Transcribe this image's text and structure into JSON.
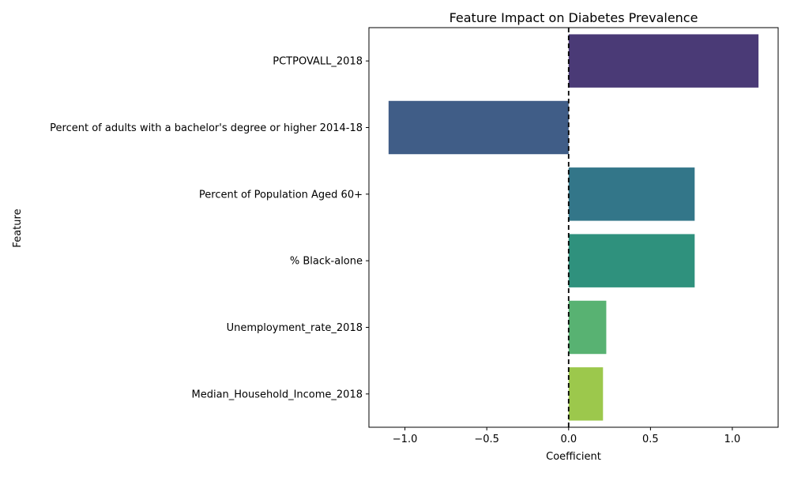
{
  "chart_data": {
    "type": "bar",
    "orientation": "horizontal",
    "title": "Feature Impact on Diabetes Prevalence",
    "xlabel": "Coefficient",
    "ylabel": "Feature",
    "xlim": [
      -1.22,
      1.28
    ],
    "xticks": [
      -1.0,
      -0.5,
      0.0,
      0.5,
      1.0
    ],
    "xtick_labels": [
      "−1.0",
      "−0.5",
      "0.0",
      "0.5",
      "1.0"
    ],
    "grid": false,
    "legend": "none",
    "reference_line": {
      "x": 0,
      "style": "dashed",
      "color": "#000000"
    },
    "categories": [
      "PCTPOVALL_2018",
      "Percent of adults with a bachelor's degree or higher 2014-18",
      "Percent of Population Aged 60+",
      "% Black-alone",
      "Unemployment_rate_2018",
      "Median_Household_Income_2018"
    ],
    "values": [
      1.16,
      -1.1,
      0.77,
      0.77,
      0.23,
      0.21
    ],
    "colors": [
      "#4a3a76",
      "#405d87",
      "#337689",
      "#2f917d",
      "#58b272",
      "#9cc84c"
    ]
  }
}
